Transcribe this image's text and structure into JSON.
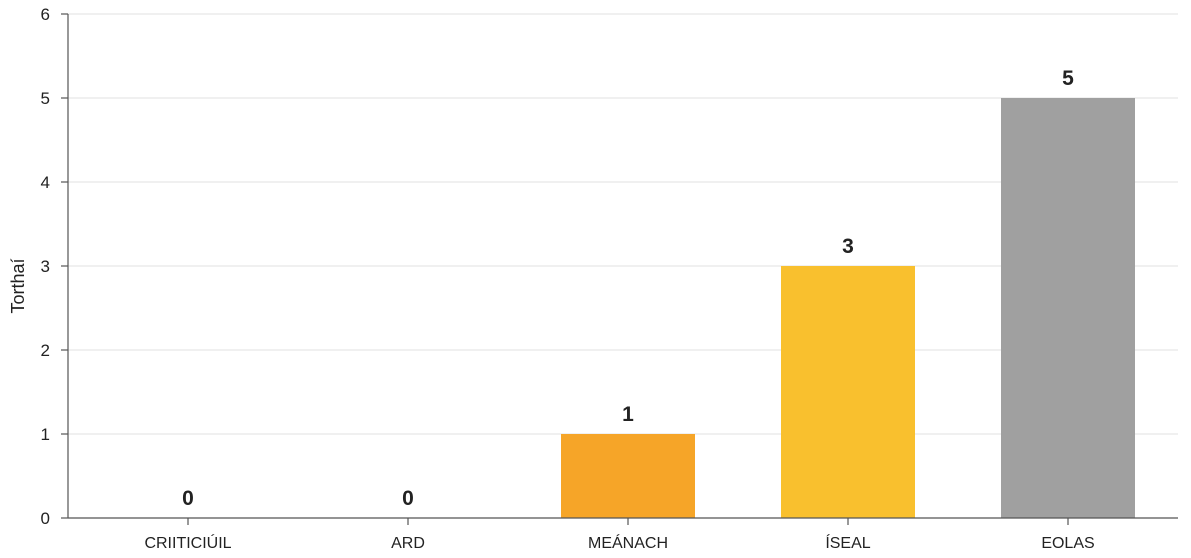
{
  "chart_data": {
    "type": "bar",
    "categories": [
      "CRIITICIÚIL",
      "ARD",
      "MEÁNACH",
      "ÍSEAL",
      "EOLAS"
    ],
    "values": [
      0,
      0,
      1,
      3,
      5
    ],
    "bar_colors": [
      "#e84b3c",
      "#f07e26",
      "#f6a528",
      "#f9c02e",
      "#a0a0a0"
    ],
    "title": "",
    "xlabel": "",
    "ylabel": "Torthaí",
    "ylim": [
      0,
      6
    ],
    "yticks": [
      0,
      1,
      2,
      3,
      4,
      5,
      6
    ],
    "grid": true,
    "gridline_color": "#e8e8e8",
    "axis_color": "#555555",
    "show_value_labels": true
  }
}
